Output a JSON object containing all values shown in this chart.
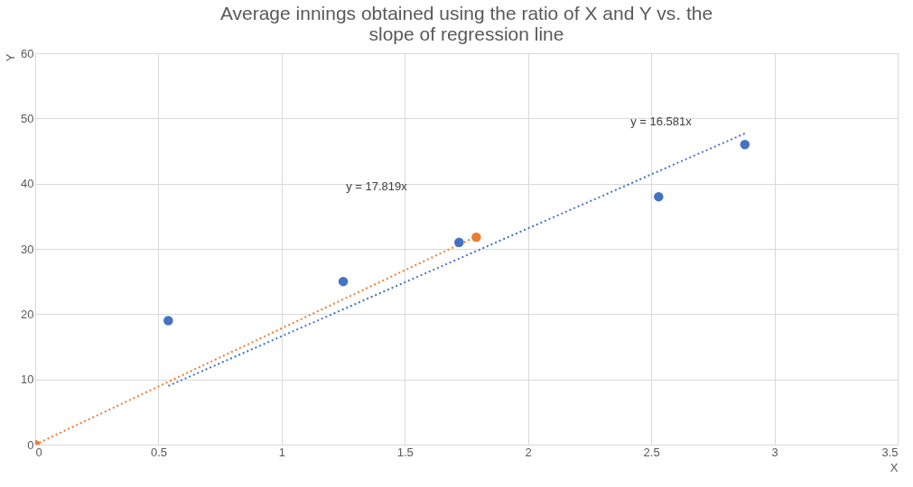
{
  "chart_data": {
    "type": "scatter",
    "title": [
      "Average innings obtained using the ratio of X and Y vs. the",
      "slope of regression line"
    ],
    "xlabel": "X",
    "ylabel": "Y",
    "xlim": [
      0,
      3.5
    ],
    "xticks": [
      0,
      0.5,
      1,
      1.5,
      2,
      2.5,
      3,
      3.5
    ],
    "ylim": [
      0,
      60
    ],
    "yticks": [
      0,
      10,
      20,
      30,
      40,
      50,
      60
    ],
    "grid": true,
    "marker": "circle",
    "series": [
      {
        "type": "line",
        "line_style": "dotted",
        "marker": "none",
        "color": "#4472c4",
        "x": [
          0.54,
          2.88
        ],
        "values": [
          9,
          47.7
        ]
      },
      {
        "type": "line",
        "line_style": "dotted",
        "marker": "none",
        "color": "#ed7d31",
        "x": [
          0,
          1.79
        ],
        "values": [
          0,
          31.9
        ]
      },
      {
        "color": "#4472c4",
        "x": [
          0.54,
          1.25,
          1.72,
          2.53,
          2.88
        ],
        "values": [
          19,
          25,
          31,
          38,
          46
        ]
      },
      {
        "color": "#ed7d31",
        "x": [
          0,
          1.79
        ],
        "values": [
          0,
          31.8
        ]
      }
    ],
    "annotations": [
      "y = 16.581x",
      "y = 17.819x"
    ]
  }
}
